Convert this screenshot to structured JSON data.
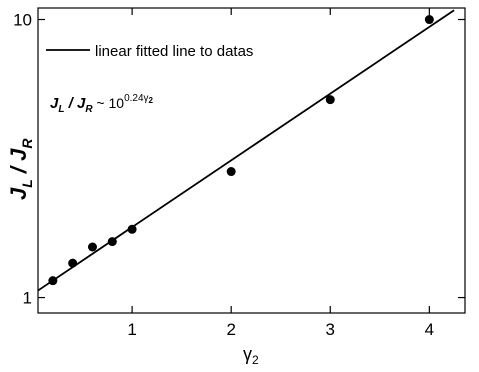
{
  "chart_data": {
    "type": "scatter",
    "ylabel_parts": [
      "J",
      "L",
      " / J",
      "R"
    ],
    "xlabel_parts": [
      "γ",
      "2"
    ],
    "annotation_parts": [
      "J",
      "L",
      " / J",
      "R",
      " ~ 10",
      "0.24γ",
      "2"
    ],
    "points": {
      "color": "#000000",
      "x": [
        0.2,
        0.4,
        0.6,
        0.8,
        1.0,
        2,
        3,
        4
      ],
      "values": [
        1.15,
        1.33,
        1.52,
        1.59,
        1.76,
        2.84,
        5.15,
        10
      ]
    },
    "fit_line": {
      "name": "linear fitted line to datas",
      "color": "#000000",
      "x": [
        0.05,
        4.25
      ],
      "values": [
        1.06,
        10.8
      ]
    },
    "xlim": [
      0.05,
      4.36
    ],
    "ylim": [
      0.88,
      11
    ],
    "ylog": true,
    "xticks": [
      1,
      2,
      3,
      4
    ],
    "yticks": [
      1,
      10
    ],
    "legend": "upper left"
  }
}
